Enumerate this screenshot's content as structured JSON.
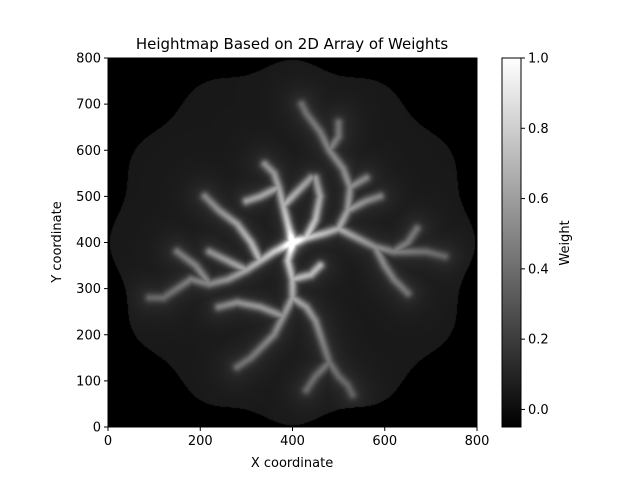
{
  "chart_data": {
    "type": "heatmap",
    "title": "Heightmap Based on 2D Array of Weights",
    "xlabel": "X coordinate",
    "ylabel": "Y coordinate",
    "xlim": [
      0,
      800
    ],
    "ylim": [
      0,
      800
    ],
    "x_ticks": [
      0,
      200,
      400,
      600,
      800
    ],
    "y_ticks": [
      0,
      100,
      200,
      300,
      400,
      500,
      600,
      700,
      800
    ],
    "colormap": "gray",
    "colorbar": {
      "label": "Weight",
      "range": [
        -0.05,
        1.0
      ],
      "ticks": [
        "0.0",
        "0.2",
        "0.4",
        "0.6",
        "0.8",
        "1.0"
      ],
      "tick_values": [
        0.0,
        0.2,
        0.4,
        0.6,
        0.8,
        1.0
      ]
    },
    "field": {
      "outside_value": -0.05,
      "disk_center": [
        400,
        400
      ],
      "disk_radius": 400,
      "disk_base_value": 0.05,
      "peak": {
        "x": 400,
        "y": 400,
        "value": 1.0
      },
      "branches": [
        [
          [
            400,
            400
          ],
          [
            430,
            410
          ],
          [
            470,
            420
          ],
          [
            500,
            430
          ],
          [
            520,
            470
          ],
          [
            525,
            520
          ],
          [
            510,
            560
          ],
          [
            480,
            600
          ],
          [
            460,
            640
          ],
          [
            430,
            680
          ],
          [
            420,
            700
          ]
        ],
        [
          [
            525,
            520
          ],
          [
            560,
            540
          ]
        ],
        [
          [
            520,
            470
          ],
          [
            560,
            490
          ],
          [
            590,
            500
          ]
        ],
        [
          [
            480,
            600
          ],
          [
            500,
            630
          ],
          [
            500,
            660
          ]
        ],
        [
          [
            500,
            430
          ],
          [
            540,
            410
          ],
          [
            580,
            390
          ],
          [
            620,
            380
          ],
          [
            650,
            380
          ],
          [
            690,
            380
          ],
          [
            730,
            370
          ]
        ],
        [
          [
            620,
            380
          ],
          [
            650,
            400
          ],
          [
            670,
            430
          ]
        ],
        [
          [
            580,
            390
          ],
          [
            600,
            350
          ],
          [
            620,
            320
          ],
          [
            650,
            290
          ]
        ],
        [
          [
            400,
            400
          ],
          [
            360,
            380
          ],
          [
            330,
            360
          ],
          [
            300,
            340
          ],
          [
            260,
            320
          ],
          [
            220,
            310
          ],
          [
            180,
            320
          ],
          [
            150,
            300
          ],
          [
            120,
            280
          ],
          [
            90,
            280
          ]
        ],
        [
          [
            330,
            360
          ],
          [
            310,
            400
          ],
          [
            280,
            440
          ],
          [
            240,
            470
          ],
          [
            210,
            500
          ]
        ],
        [
          [
            300,
            340
          ],
          [
            260,
            360
          ],
          [
            220,
            380
          ]
        ],
        [
          [
            220,
            310
          ],
          [
            190,
            350
          ],
          [
            150,
            380
          ]
        ],
        [
          [
            400,
            400
          ],
          [
            390,
            360
          ],
          [
            400,
            320
          ],
          [
            400,
            280
          ],
          [
            380,
            240
          ],
          [
            360,
            200
          ],
          [
            340,
            180
          ],
          [
            310,
            150
          ],
          [
            280,
            130
          ]
        ],
        [
          [
            400,
            280
          ],
          [
            430,
            260
          ],
          [
            450,
            230
          ],
          [
            460,
            200
          ],
          [
            470,
            170
          ],
          [
            480,
            140
          ],
          [
            500,
            110
          ],
          [
            520,
            90
          ],
          [
            530,
            70
          ]
        ],
        [
          [
            480,
            140
          ],
          [
            450,
            110
          ],
          [
            430,
            80
          ]
        ],
        [
          [
            400,
            320
          ],
          [
            440,
            330
          ],
          [
            460,
            350
          ]
        ],
        [
          [
            380,
            240
          ],
          [
            330,
            260
          ],
          [
            280,
            270
          ],
          [
            240,
            260
          ]
        ],
        [
          [
            400,
            400
          ],
          [
            390,
            440
          ],
          [
            380,
            480
          ],
          [
            370,
            520
          ],
          [
            360,
            550
          ],
          [
            340,
            570
          ]
        ],
        [
          [
            370,
            520
          ],
          [
            330,
            500
          ],
          [
            300,
            490
          ]
        ],
        [
          [
            380,
            480
          ],
          [
            410,
            510
          ],
          [
            440,
            540
          ]
        ],
        [
          [
            430,
            410
          ],
          [
            450,
            450
          ],
          [
            460,
            500
          ],
          [
            450,
            540
          ]
        ]
      ]
    }
  }
}
